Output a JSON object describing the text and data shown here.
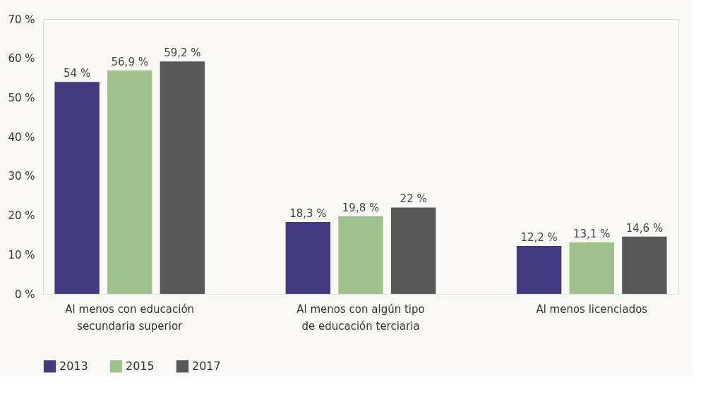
{
  "chart_data": {
    "type": "bar",
    "categories": [
      "Al menos con educación secundaria superior",
      "Al menos con algún tipo de educación terciaria",
      "Al menos licenciados"
    ],
    "series": [
      {
        "name": "2013",
        "color": "#433a82",
        "values": [
          54,
          18.3,
          12.2
        ],
        "value_labels": [
          "54 %",
          "18,3 %",
          "12,2 %"
        ]
      },
      {
        "name": "2015",
        "color": "#9dc28e",
        "values": [
          56.9,
          19.8,
          13.1
        ],
        "value_labels": [
          "56,9 %",
          "19,8 %",
          "13,1 %"
        ]
      },
      {
        "name": "2017",
        "color": "#575757",
        "values": [
          59.2,
          22,
          14.6
        ],
        "value_labels": [
          "59,2 %",
          "22 %",
          "14,6 %"
        ]
      }
    ],
    "ylim": [
      0,
      70
    ],
    "yticks": [
      {
        "value": 0,
        "label": "0 %"
      },
      {
        "value": 10,
        "label": "10 %"
      },
      {
        "value": 20,
        "label": "20 %"
      },
      {
        "value": 30,
        "label": "30 %"
      },
      {
        "value": 40,
        "label": "40 %"
      },
      {
        "value": 50,
        "label": "50 %"
      },
      {
        "value": 60,
        "label": "60 %"
      },
      {
        "value": 70,
        "label": "70 %"
      }
    ],
    "grid": false,
    "legend": "bottom"
  }
}
